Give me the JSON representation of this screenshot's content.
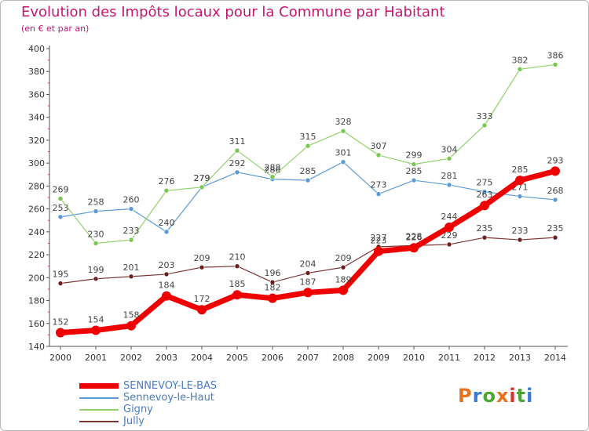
{
  "header": {
    "title": "Evolution des Impôts locaux pour la Commune par Habitant",
    "subtitle": "(en € et par an)"
  },
  "logo": {
    "text": "Proxiti",
    "letters": [
      {
        "ch": "P",
        "color": "#e8721c"
      },
      {
        "ch": "r",
        "color": "#3a7bd5"
      },
      {
        "ch": "o",
        "color": "#4aa832"
      },
      {
        "ch": "x",
        "color": "#e8721c"
      },
      {
        "ch": "i",
        "color": "#d93030"
      },
      {
        "ch": "t",
        "color": "#4aa832"
      },
      {
        "ch": "i",
        "color": "#3a7bd5"
      }
    ]
  },
  "chart_data": {
    "type": "line",
    "title": "Evolution des Impôts locaux pour la Commune par Habitant",
    "subtitle": "(en € et par an)",
    "xlabel": "",
    "ylabel": "",
    "categories": [
      "2000",
      "2001",
      "2002",
      "2003",
      "2004",
      "2005",
      "2006",
      "2007",
      "2008",
      "2009",
      "2010",
      "2011",
      "2012",
      "2013",
      "2014"
    ],
    "ylim": [
      140,
      400
    ],
    "yticks": [
      140,
      160,
      180,
      200,
      220,
      240,
      260,
      280,
      300,
      320,
      340,
      360,
      380,
      400
    ],
    "grid": false,
    "legend_position": "bottom-left",
    "series": [
      {
        "name": "Sennevoy-le-Haut",
        "color": "#5b9bd5",
        "dot": "#5b9bd5",
        "width": 1.2,
        "r": 3,
        "values": [
          253,
          258,
          260,
          240,
          279,
          292,
          286,
          285,
          301,
          273,
          285,
          281,
          275,
          271,
          268
        ]
      },
      {
        "name": "Gigny",
        "color": "#8fd16a",
        "dot": "#78c850",
        "width": 1.2,
        "r": 3,
        "values": [
          269,
          230,
          233,
          276,
          279,
          311,
          288,
          315,
          328,
          307,
          299,
          304,
          333,
          382,
          386
        ]
      },
      {
        "name": "Jully",
        "color": "#7a3434",
        "dot": "#6a1e1e",
        "width": 1.2,
        "r": 3,
        "values": [
          195,
          199,
          201,
          203,
          209,
          210,
          196,
          204,
          209,
          227,
          228,
          229,
          235,
          233,
          235
        ]
      },
      {
        "name": "SENNEVOY-LE-BAS",
        "color": "#ee0000",
        "dot": "#ee0000",
        "width": 7,
        "r": 6,
        "values": [
          152,
          154,
          158,
          184,
          172,
          185,
          182,
          187,
          189,
          223,
          226,
          244,
          263,
          285,
          293
        ]
      }
    ]
  },
  "legend": {
    "items": [
      {
        "label": "SENNEVOY-LE-BAS",
        "color": "#ee0000"
      },
      {
        "label": "Sennevoy-le-Haut",
        "color": "#5b9bd5"
      },
      {
        "label": "Gigny",
        "color": "#8fd16a"
      },
      {
        "label": "Jully",
        "color": "#7a3434"
      }
    ]
  }
}
